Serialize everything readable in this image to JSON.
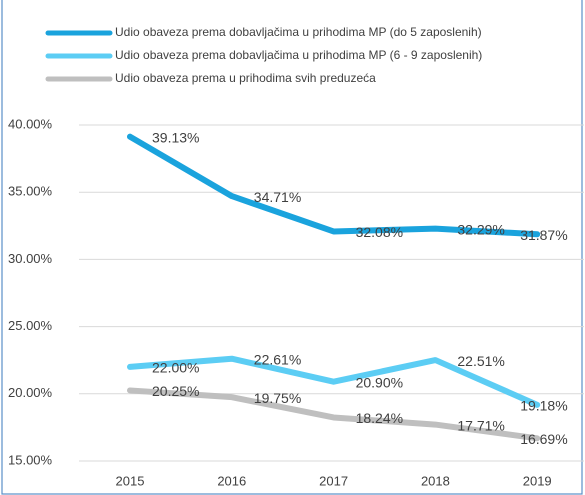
{
  "chart_data": {
    "type": "line",
    "categories": [
      "2015",
      "2016",
      "2017",
      "2018",
      "2019"
    ],
    "series": [
      {
        "name": "Udio obaveza prema dobavljačima u prihodima MP (do 5 zaposlenih)",
        "color": "#1aa3dd",
        "values": [
          39.13,
          34.71,
          32.08,
          32.29,
          31.87
        ],
        "value_labels": [
          "39.13%",
          "34.71%",
          "32.08%",
          "32.29%",
          "31.87%"
        ]
      },
      {
        "name": "Udio obaveza prema dobavljačima u prihodima MP (6 - 9 zaposlenih)",
        "color": "#5ccdf4",
        "values": [
          22.0,
          22.61,
          20.9,
          22.51,
          19.18
        ],
        "value_labels": [
          "22.00%",
          "22.61%",
          "20.90%",
          "22.51%",
          "19.18%"
        ]
      },
      {
        "name": "Udio obaveza prema u prihodima svih preduzeća",
        "color": "#bfbfbf",
        "values": [
          20.25,
          19.75,
          18.24,
          17.71,
          16.69
        ],
        "value_labels": [
          "20.25%",
          "19.75%",
          "18.24%",
          "17.71%",
          "16.69%"
        ]
      }
    ],
    "ylim": [
      15,
      40
    ],
    "yticks": [
      {
        "value": 15,
        "label": "15.00%"
      },
      {
        "value": 20,
        "label": "20.00%"
      },
      {
        "value": 25,
        "label": "25.00%"
      },
      {
        "value": 30,
        "label": "30.00%"
      },
      {
        "value": 35,
        "label": "35.00%"
      },
      {
        "value": 40,
        "label": "40.00%"
      }
    ],
    "grid": true
  }
}
